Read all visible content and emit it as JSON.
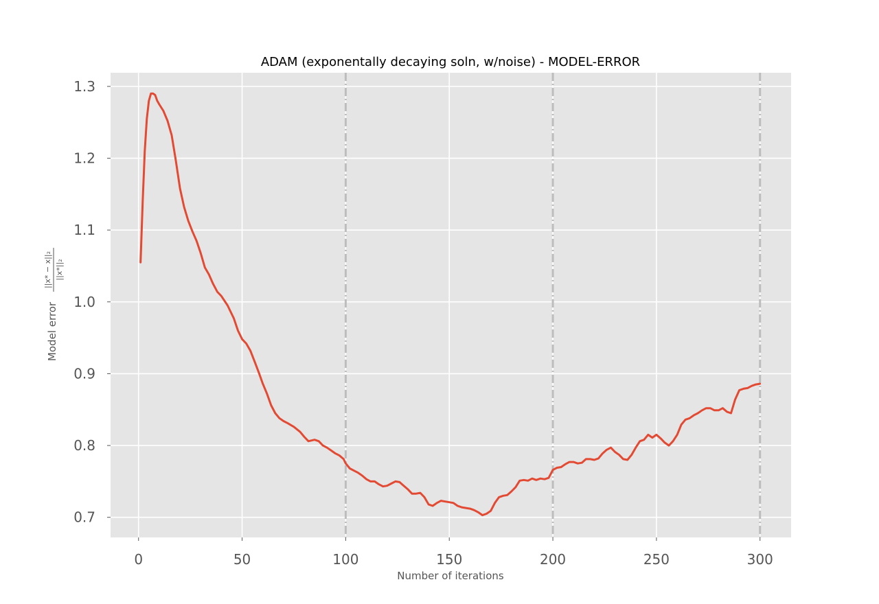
{
  "chart_data": {
    "type": "line",
    "title": "ADAM (exponentally decaying soln, w/noise) - MODEL-ERROR",
    "xlabel": "Number of iterations",
    "ylabel": "Model error",
    "ylabel_formula_numerator": "||x* − x||₂",
    "ylabel_formula_denominator": "||x*||₂",
    "xlim": [
      -13.5,
      315
    ],
    "ylim": [
      0.672,
      1.319
    ],
    "xticks": [
      0,
      50,
      100,
      150,
      200,
      250,
      300
    ],
    "yticks": [
      0.7,
      0.8,
      0.9,
      1.0,
      1.1,
      1.2,
      1.3
    ],
    "xtick_labels": [
      "0",
      "50",
      "100",
      "150",
      "200",
      "250",
      "300"
    ],
    "ytick_labels": [
      "0.7",
      "0.8",
      "0.9",
      "1.0",
      "1.1",
      "1.2",
      "1.3"
    ],
    "grid": true,
    "background": "#e5e5e5",
    "line_color": "#e24a33",
    "vline_color": "#bdbdbd",
    "vlines": [
      100,
      200,
      300
    ],
    "series": [
      {
        "x": [
          1,
          2,
          3,
          4,
          5,
          6,
          7,
          8,
          9,
          10,
          12,
          14,
          16,
          18,
          20,
          22,
          24,
          26,
          28,
          30,
          32,
          34,
          36,
          38,
          40,
          43,
          46,
          48,
          50,
          52,
          54,
          56,
          58,
          60,
          62,
          64,
          66,
          68,
          70,
          72,
          75,
          78,
          80,
          82,
          85,
          87,
          89,
          91,
          93,
          95,
          97,
          99,
          100,
          102,
          104,
          106,
          108,
          110,
          112,
          114,
          116,
          118,
          120,
          122,
          124,
          126,
          128,
          130,
          132,
          134,
          136,
          138,
          140,
          142,
          144,
          146,
          148,
          150,
          152,
          154,
          156,
          158,
          160,
          162,
          164,
          166,
          168,
          170,
          172,
          174,
          176,
          178,
          180,
          182,
          184,
          186,
          188,
          190,
          192,
          194,
          196,
          198,
          200,
          202,
          204,
          206,
          208,
          210,
          212,
          214,
          216,
          218,
          220,
          222,
          224,
          226,
          228,
          230,
          232,
          234,
          236,
          238,
          240,
          242,
          244,
          246,
          248,
          250,
          252,
          254,
          256,
          258,
          260,
          262,
          264,
          266,
          268,
          270,
          272,
          274,
          276,
          278,
          280,
          282,
          284,
          286,
          288,
          290,
          292,
          294,
          296,
          298,
          300
        ],
        "y": [
          1.055,
          1.14,
          1.21,
          1.255,
          1.28,
          1.29,
          1.29,
          1.288,
          1.28,
          1.275,
          1.266,
          1.252,
          1.232,
          1.197,
          1.158,
          1.132,
          1.113,
          1.098,
          1.085,
          1.068,
          1.048,
          1.038,
          1.025,
          1.014,
          1.008,
          0.995,
          0.977,
          0.96,
          0.948,
          0.942,
          0.932,
          0.917,
          0.902,
          0.886,
          0.872,
          0.856,
          0.845,
          0.838,
          0.834,
          0.831,
          0.826,
          0.819,
          0.812,
          0.806,
          0.808,
          0.806,
          0.8,
          0.797,
          0.793,
          0.789,
          0.786,
          0.781,
          0.775,
          0.768,
          0.765,
          0.762,
          0.758,
          0.753,
          0.75,
          0.75,
          0.746,
          0.743,
          0.744,
          0.747,
          0.75,
          0.749,
          0.744,
          0.739,
          0.733,
          0.733,
          0.734,
          0.728,
          0.718,
          0.716,
          0.72,
          0.723,
          0.722,
          0.721,
          0.72,
          0.716,
          0.714,
          0.713,
          0.712,
          0.71,
          0.707,
          0.703,
          0.705,
          0.709,
          0.72,
          0.728,
          0.73,
          0.731,
          0.736,
          0.742,
          0.751,
          0.752,
          0.751,
          0.754,
          0.752,
          0.754,
          0.753,
          0.755,
          0.766,
          0.769,
          0.77,
          0.774,
          0.777,
          0.777,
          0.775,
          0.776,
          0.781,
          0.781,
          0.78,
          0.782,
          0.789,
          0.794,
          0.797,
          0.791,
          0.787,
          0.781,
          0.78,
          0.787,
          0.797,
          0.806,
          0.808,
          0.815,
          0.811,
          0.815,
          0.81,
          0.804,
          0.8,
          0.806,
          0.815,
          0.829,
          0.836,
          0.838,
          0.842,
          0.845,
          0.849,
          0.852,
          0.852,
          0.849,
          0.849,
          0.852,
          0.847,
          0.845,
          0.864,
          0.877,
          0.879,
          0.88,
          0.883,
          0.885,
          0.886
        ]
      }
    ]
  }
}
